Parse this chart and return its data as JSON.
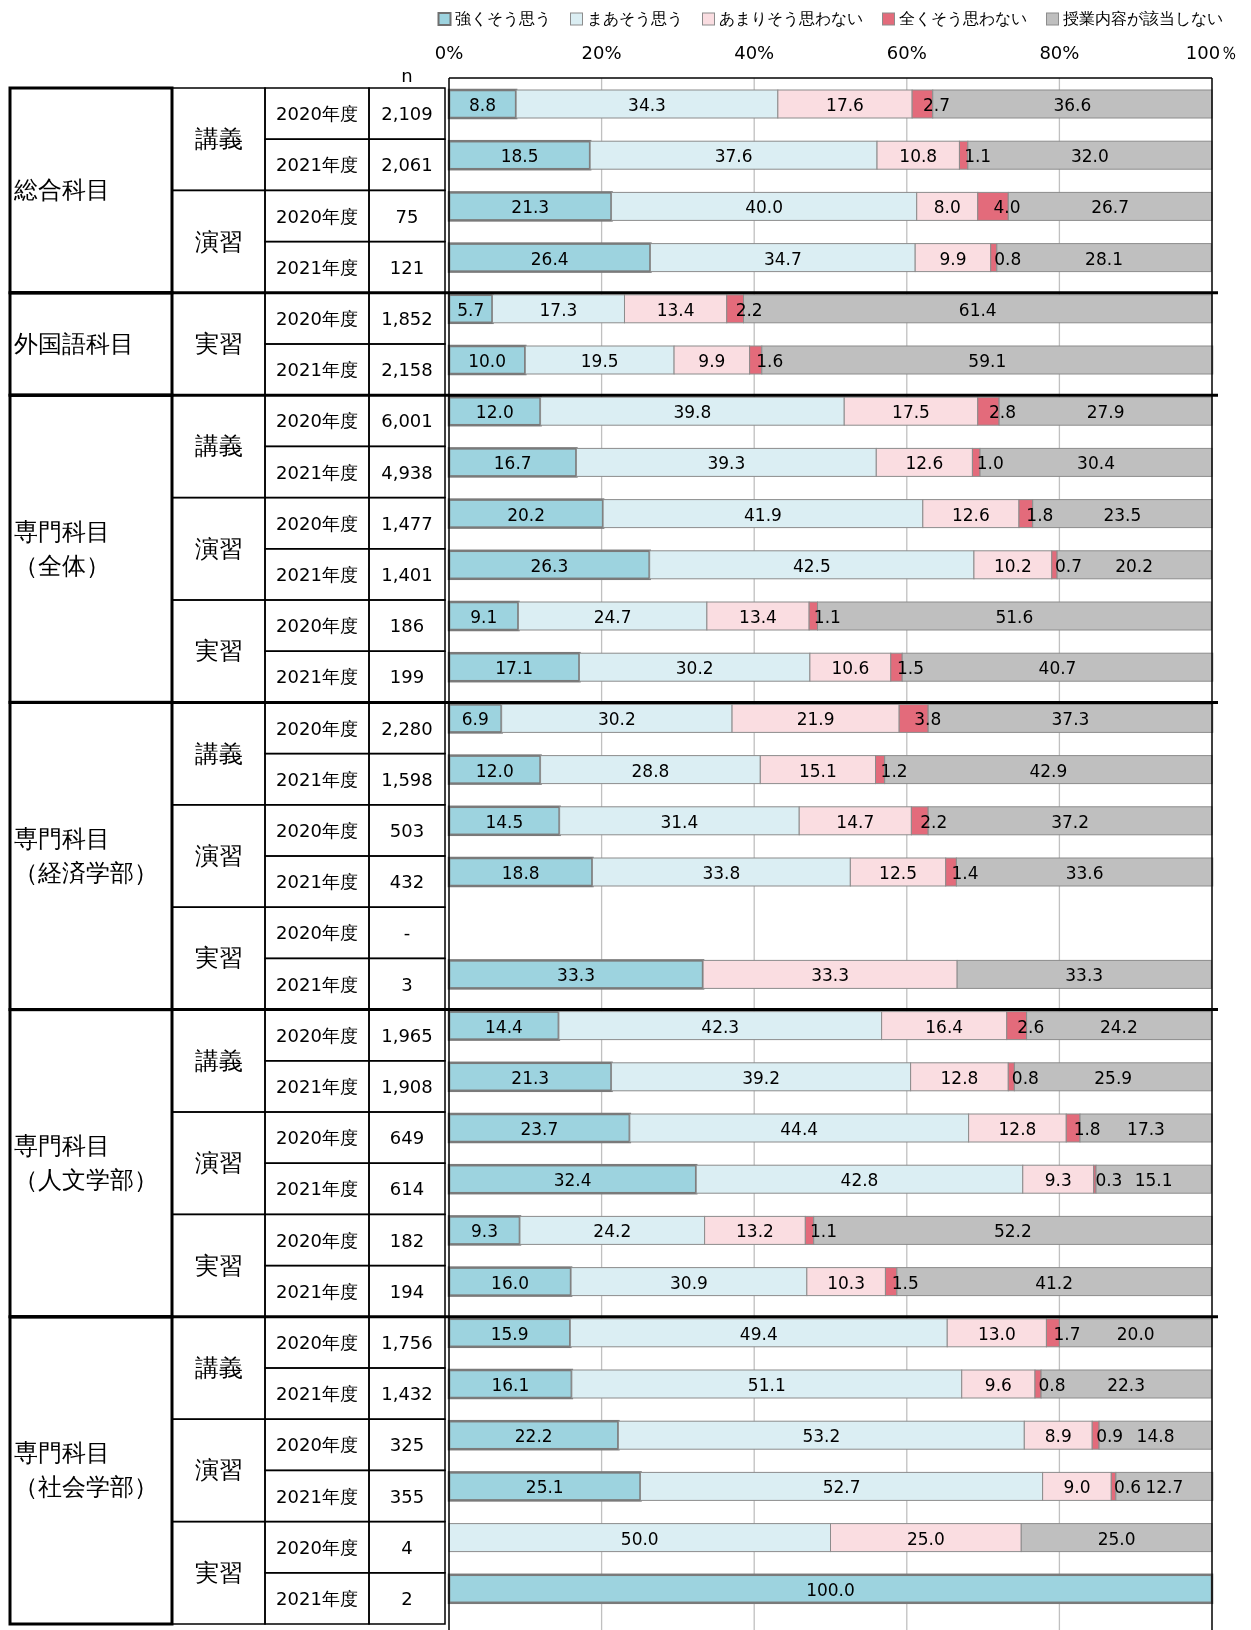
{
  "chart_data": {
    "type": "bar",
    "orientation": "horizontal",
    "stacked": true,
    "categories": [
      "2020年度",
      "2021年度",
      "2020年度",
      "2021年度",
      "2020年度",
      "2021年度",
      "2020年度",
      "2021年度",
      "2020年度",
      "2021年度",
      "2020年度",
      "2021年度",
      "2020年度",
      "2021年度",
      "2020年度",
      "2021年度",
      "2020年度",
      "2021年度",
      "2020年度",
      "2021年度",
      "2020年度",
      "2021年度",
      "2020年度",
      "2021年度",
      "2020年度",
      "2021年度",
      "2020年度",
      "2021年度",
      "2020年度",
      "2021年度"
    ],
    "y2_categories": [
      "2,109",
      "2,061",
      "75",
      "121",
      "1,852",
      "2,158",
      "6,001",
      "4,938",
      "1,477",
      "1,401",
      "186",
      "199",
      "2,280",
      "1,598",
      "503",
      "432",
      "-",
      "3",
      "1,965",
      "1,908",
      "649",
      "614",
      "182",
      "194",
      "1,756",
      "1,432",
      "325",
      "355",
      "4",
      "2"
    ],
    "annotations": [
      "n",
      "総合科目",
      "講義",
      "演習",
      "外国語科目",
      "実習",
      "専門科目（全体）",
      "講義",
      "演習",
      "実習",
      "専門科目（経済学部）",
      "講義",
      "演習",
      "実習",
      "専門科目（人文学部）",
      "講義",
      "演習",
      "実習",
      "専門科目（社会学部）",
      "講義",
      "演習",
      "実習"
    ],
    "series": [
      {
        "name": "強くそう思う",
        "color": "#9dd3df",
        "values": [
          8.8,
          18.5,
          21.3,
          26.4,
          5.7,
          10.0,
          12.0,
          16.7,
          20.2,
          26.3,
          9.1,
          17.1,
          6.9,
          12.0,
          14.5,
          18.8,
          null,
          33.3,
          14.4,
          21.3,
          23.7,
          32.4,
          9.3,
          16.0,
          15.9,
          16.1,
          22.2,
          25.1,
          null,
          100.0
        ],
        "value_labels": [
          "8.8",
          "18.5",
          "21.3",
          "26.4",
          "5.7",
          "10.0",
          "12.0",
          "16.7",
          "20.2",
          "26.3",
          "9.1",
          "17.1",
          "6.9",
          "12.0",
          "14.5",
          "18.8",
          null,
          "33.3",
          "14.4",
          "21.3",
          "23.7",
          "32.4",
          "9.3",
          "16.0",
          "15.9",
          "16.1",
          "22.2",
          "25.1",
          null,
          "100.0"
        ]
      },
      {
        "name": "まあそう思う",
        "color": "#dbeef3",
        "values": [
          34.3,
          37.6,
          40.0,
          34.7,
          17.3,
          19.5,
          39.8,
          39.3,
          41.9,
          42.5,
          24.7,
          30.2,
          30.2,
          28.8,
          31.4,
          33.8,
          null,
          null,
          42.3,
          39.2,
          44.4,
          42.8,
          24.2,
          30.9,
          49.4,
          51.1,
          53.2,
          52.7,
          50.0,
          null
        ],
        "value_labels": [
          "34.3",
          "37.6",
          "40.0",
          "34.7",
          "17.3",
          "19.5",
          "39.8",
          "39.3",
          "41.9",
          "42.5",
          "24.7",
          "30.2",
          "30.2",
          "28.8",
          "31.4",
          "33.8",
          null,
          null,
          "42.3",
          "39.2",
          "44.4",
          "42.8",
          "24.2",
          "30.9",
          "49.4",
          "51.1",
          "53.2",
          "52.7",
          "50.0",
          null
        ]
      },
      {
        "name": "あまりそう思わない",
        "color": "#fadde1",
        "values": [
          17.6,
          10.8,
          8.0,
          9.9,
          13.4,
          9.9,
          17.5,
          12.6,
          12.6,
          10.2,
          13.4,
          10.6,
          21.9,
          15.1,
          14.7,
          12.5,
          null,
          33.3,
          16.4,
          12.8,
          12.8,
          9.3,
          13.2,
          10.3,
          13.0,
          9.6,
          8.9,
          9.0,
          25.0,
          null
        ],
        "value_labels": [
          "17.6",
          "10.8",
          "8.0",
          "9.9",
          "13.4",
          "9.9",
          "17.5",
          "12.6",
          "12.6",
          "10.2",
          "13.4",
          "10.6",
          "21.9",
          "15.1",
          "14.7",
          "12.5",
          null,
          "33.3",
          "16.4",
          "12.8",
          "12.8",
          "9.3",
          "13.2",
          "10.3",
          "13.0",
          "9.6",
          "8.9",
          "9.0",
          "25.0",
          null
        ]
      },
      {
        "name": "全くそう思わない",
        "color": "#e36b7b",
        "values": [
          2.7,
          1.1,
          4.0,
          0.8,
          2.2,
          1.6,
          2.8,
          1.0,
          1.8,
          0.7,
          1.1,
          1.5,
          3.8,
          1.2,
          2.2,
          1.4,
          null,
          null,
          2.6,
          0.8,
          1.8,
          0.3,
          1.1,
          1.5,
          1.7,
          0.8,
          0.9,
          0.6,
          null,
          null
        ],
        "value_labels": [
          "2.7",
          "1.1",
          "4.0",
          "0.8",
          "2.2",
          "1.6",
          "2.8",
          "1.0",
          "1.8",
          "0.7",
          "1.1",
          "1.5",
          "3.8",
          "1.2",
          "2.2",
          "1.4",
          null,
          null,
          "2.6",
          "0.8",
          "1.8",
          "0.3",
          "1.1",
          "1.5",
          "1.7",
          "0.8",
          "0.9",
          "0.6",
          null,
          null
        ]
      },
      {
        "name": "授業内容が該当しない",
        "color": "#bfbfbf",
        "values": [
          36.6,
          32.0,
          26.7,
          28.1,
          61.4,
          59.1,
          27.9,
          30.4,
          23.5,
          20.2,
          51.6,
          40.7,
          37.3,
          42.9,
          37.2,
          33.6,
          null,
          33.3,
          24.2,
          25.9,
          17.3,
          15.1,
          52.2,
          41.2,
          20.0,
          22.3,
          14.8,
          12.7,
          25.0,
          null
        ],
        "value_labels": [
          "36.6",
          "32.0",
          "26.7",
          "28.1",
          "61.4",
          "59.1",
          "27.9",
          "30.4",
          "23.5",
          "20.2",
          "51.6",
          "40.7",
          "37.3",
          "42.9",
          "37.2",
          "33.6",
          null,
          "33.3",
          "24.2",
          "25.9",
          "17.3",
          "15.1",
          "52.2",
          "41.2",
          "20.0",
          "22.3",
          "14.8",
          "12.7",
          "25.0",
          null
        ]
      }
    ],
    "xlim": [
      0,
      100
    ],
    "xticks": [
      {
        "value": 0,
        "label": "0%"
      },
      {
        "value": 20,
        "label": "20%"
      },
      {
        "value": 40,
        "label": "40%"
      },
      {
        "value": 60,
        "label": "60%"
      },
      {
        "value": 80,
        "label": "80%"
      },
      {
        "value": 100,
        "label": "100％"
      }
    ],
    "grid": "x",
    "legend": "top"
  }
}
